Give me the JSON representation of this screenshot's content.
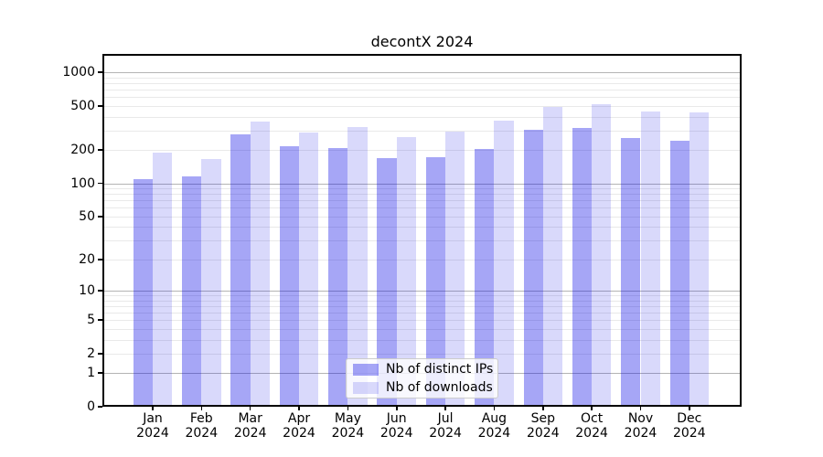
{
  "chart_data": {
    "type": "bar",
    "title": "decontX 2024",
    "categories": [
      "Jan 2024",
      "Feb 2024",
      "Mar 2024",
      "Apr 2024",
      "May 2024",
      "Jun 2024",
      "Jul 2024",
      "Aug 2024",
      "Sep 2024",
      "Oct 2024",
      "Nov 2024",
      "Dec 2024"
    ],
    "series": [
      {
        "name": "Nb of distinct IPs",
        "color": "#0000e6",
        "alpha": 0.35,
        "values": [
          110,
          116,
          275,
          215,
          210,
          168,
          172,
          205,
          302,
          315,
          256,
          244
        ]
      },
      {
        "name": "Nb of downloads",
        "color": "#0000e6",
        "alpha": 0.15,
        "values": [
          190,
          165,
          363,
          287,
          322,
          261,
          291,
          365,
          491,
          517,
          448,
          439
        ]
      }
    ],
    "yscale": "log1p",
    "ylim": [
      0,
      1460
    ],
    "yticks": [
      0,
      1,
      2,
      5,
      10,
      20,
      50,
      100,
      200,
      500,
      1000
    ],
    "grid": true,
    "legend_position": "lower center",
    "colors": {
      "bar_dark_effective": "#a6a6f6",
      "bar_light_effective": "#d9d9fb",
      "major_grid": "#b4b4b4",
      "minor_grid": "#e9e9e9",
      "axis": "#000000",
      "background": "#ffffff"
    }
  }
}
